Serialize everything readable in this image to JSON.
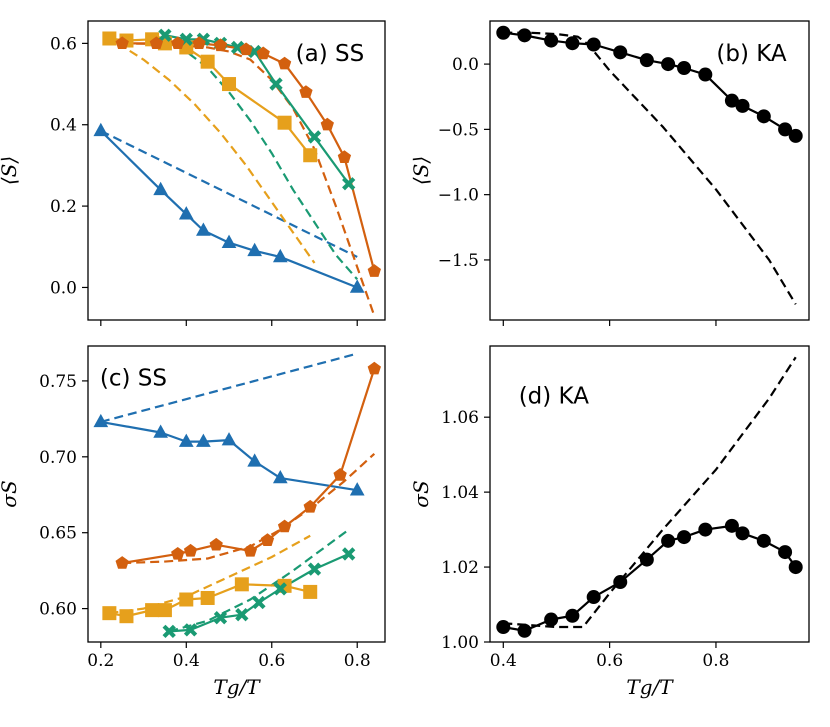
{
  "colors": {
    "blue": "#1f6fb0",
    "orange": "#e6a01c",
    "green": "#1a9a73",
    "red": "#d3600f",
    "black": "#000000"
  },
  "chart_data": [
    {
      "id": "a",
      "type": "line",
      "panel_label": "(a) SS",
      "ylabel": "⟨S⟩",
      "xlabel": "",
      "xlim": [
        0.17,
        0.865
      ],
      "ylim": [
        -0.08,
        0.655
      ],
      "xticks": [
        0.2,
        0.4,
        0.6,
        0.8
      ],
      "xtick_labels": [
        "",
        "",
        "",
        ""
      ],
      "yticks": [
        0.0,
        0.2,
        0.4,
        0.6
      ],
      "ytick_labels": [
        "0.0",
        "0.2",
        "0.4",
        "0.6"
      ],
      "series": [
        {
          "name": "blue-sim",
          "color": "blue",
          "marker": "triangle",
          "x": [
            0.2,
            0.34,
            0.4,
            0.44,
            0.5,
            0.56,
            0.62,
            0.8
          ],
          "y": [
            0.385,
            0.24,
            0.18,
            0.14,
            0.11,
            0.09,
            0.075,
            0.0
          ]
        },
        {
          "name": "blue-theory",
          "color": "blue",
          "dashed": true,
          "x": [
            0.2,
            0.8
          ],
          "y": [
            0.385,
            0.075
          ]
        },
        {
          "name": "orange-sim",
          "color": "orange",
          "marker": "square",
          "x": [
            0.22,
            0.26,
            0.32,
            0.35,
            0.4,
            0.45,
            0.5,
            0.63,
            0.69
          ],
          "y": [
            0.612,
            0.607,
            0.61,
            0.6,
            0.59,
            0.555,
            0.5,
            0.405,
            0.325
          ]
        },
        {
          "name": "orange-theory",
          "color": "orange",
          "dashed": true,
          "x": [
            0.24,
            0.3,
            0.36,
            0.42,
            0.48,
            0.54,
            0.6,
            0.66,
            0.7
          ],
          "y": [
            0.6,
            0.56,
            0.51,
            0.45,
            0.38,
            0.3,
            0.21,
            0.12,
            0.06
          ]
        },
        {
          "name": "green-sim",
          "color": "green",
          "marker": "cross",
          "x": [
            0.35,
            0.4,
            0.44,
            0.48,
            0.52,
            0.56,
            0.61,
            0.7,
            0.78
          ],
          "y": [
            0.62,
            0.61,
            0.61,
            0.6,
            0.59,
            0.58,
            0.5,
            0.37,
            0.255
          ]
        },
        {
          "name": "green-theory",
          "color": "green",
          "dashed": true,
          "x": [
            0.35,
            0.4,
            0.45,
            0.5,
            0.55,
            0.6,
            0.65,
            0.7,
            0.75,
            0.8
          ],
          "y": [
            0.61,
            0.58,
            0.54,
            0.48,
            0.41,
            0.33,
            0.24,
            0.16,
            0.08,
            0.02
          ]
        },
        {
          "name": "red-sim",
          "color": "red",
          "marker": "pentagon",
          "x": [
            0.25,
            0.33,
            0.38,
            0.43,
            0.48,
            0.54,
            0.58,
            0.63,
            0.68,
            0.73,
            0.77,
            0.84
          ],
          "y": [
            0.6,
            0.6,
            0.6,
            0.6,
            0.595,
            0.585,
            0.575,
            0.55,
            0.48,
            0.4,
            0.32,
            0.04
          ]
        },
        {
          "name": "red-theory",
          "color": "red",
          "dashed": true,
          "x": [
            0.25,
            0.35,
            0.45,
            0.5,
            0.55,
            0.6,
            0.65,
            0.7,
            0.75,
            0.8,
            0.84
          ],
          "y": [
            0.6,
            0.598,
            0.59,
            0.58,
            0.56,
            0.51,
            0.44,
            0.34,
            0.2,
            0.05,
            -0.07
          ]
        }
      ]
    },
    {
      "id": "b",
      "type": "line",
      "panel_label": "(b) KA",
      "ylabel": "⟨S⟩",
      "xlabel": "",
      "xlim": [
        0.375,
        0.975
      ],
      "ylim": [
        -1.96,
        0.33
      ],
      "xticks": [
        0.4,
        0.6,
        0.8
      ],
      "xtick_labels": [
        "",
        "",
        ""
      ],
      "yticks": [
        0.0,
        -0.5,
        -1.0,
        -1.5
      ],
      "ytick_labels": [
        "0.0",
        "−0.5",
        "−1.0",
        "−1.5"
      ],
      "series": [
        {
          "name": "KA-sim",
          "color": "black",
          "marker": "circle",
          "x": [
            0.4,
            0.44,
            0.49,
            0.53,
            0.57,
            0.62,
            0.67,
            0.71,
            0.74,
            0.78,
            0.83,
            0.85,
            0.89,
            0.93,
            0.95
          ],
          "y": [
            0.24,
            0.22,
            0.18,
            0.16,
            0.15,
            0.09,
            0.03,
            0.0,
            -0.03,
            -0.08,
            -0.28,
            -0.32,
            -0.4,
            -0.5,
            -0.55
          ]
        },
        {
          "name": "KA-theory",
          "color": "black",
          "dashed": true,
          "x": [
            0.4,
            0.45,
            0.5,
            0.54,
            0.56,
            0.6,
            0.7,
            0.8,
            0.9,
            0.95
          ],
          "y": [
            0.24,
            0.24,
            0.23,
            0.21,
            0.15,
            -0.05,
            -0.48,
            -0.96,
            -1.5,
            -1.84
          ]
        }
      ]
    },
    {
      "id": "c",
      "type": "line",
      "panel_label": "(c) SS",
      "ylabel": "σS",
      "xlabel": "Tg/T",
      "xlim": [
        0.17,
        0.865
      ],
      "ylim": [
        0.578,
        0.773
      ],
      "xticks": [
        0.2,
        0.4,
        0.6,
        0.8
      ],
      "xtick_labels": [
        "0.2",
        "0.4",
        "0.6",
        "0.8"
      ],
      "yticks": [
        0.6,
        0.65,
        0.7,
        0.75
      ],
      "ytick_labels": [
        "0.60",
        "0.65",
        "0.70",
        "0.75"
      ],
      "series": [
        {
          "name": "blue-sim",
          "color": "blue",
          "marker": "triangle",
          "x": [
            0.2,
            0.34,
            0.4,
            0.44,
            0.5,
            0.56,
            0.62,
            0.8
          ],
          "y": [
            0.723,
            0.716,
            0.71,
            0.71,
            0.711,
            0.697,
            0.686,
            0.678
          ]
        },
        {
          "name": "blue-theory",
          "color": "blue",
          "dashed": true,
          "x": [
            0.2,
            0.8
          ],
          "y": [
            0.723,
            0.768
          ]
        },
        {
          "name": "orange-sim",
          "color": "orange",
          "marker": "square",
          "x": [
            0.22,
            0.26,
            0.32,
            0.35,
            0.4,
            0.45,
            0.53,
            0.63,
            0.69
          ],
          "y": [
            0.597,
            0.595,
            0.599,
            0.599,
            0.606,
            0.607,
            0.616,
            0.615,
            0.611
          ]
        },
        {
          "name": "orange-theory",
          "color": "orange",
          "dashed": true,
          "x": [
            0.22,
            0.3,
            0.4,
            0.5,
            0.6,
            0.69
          ],
          "y": [
            0.597,
            0.6,
            0.608,
            0.621,
            0.634,
            0.648
          ]
        },
        {
          "name": "green-sim",
          "color": "green",
          "marker": "cross",
          "x": [
            0.36,
            0.41,
            0.48,
            0.53,
            0.57,
            0.62,
            0.7,
            0.78
          ],
          "y": [
            0.585,
            0.586,
            0.594,
            0.596,
            0.604,
            0.613,
            0.626,
            0.636
          ]
        },
        {
          "name": "green-theory",
          "color": "green",
          "dashed": true,
          "x": [
            0.36,
            0.45,
            0.55,
            0.65,
            0.78
          ],
          "y": [
            0.585,
            0.592,
            0.606,
            0.625,
            0.652
          ]
        },
        {
          "name": "red-sim",
          "color": "red",
          "marker": "pentagon",
          "x": [
            0.25,
            0.38,
            0.41,
            0.47,
            0.55,
            0.59,
            0.63,
            0.69,
            0.76,
            0.84
          ],
          "y": [
            0.63,
            0.636,
            0.638,
            0.642,
            0.638,
            0.645,
            0.654,
            0.667,
            0.688,
            0.758
          ]
        },
        {
          "name": "red-theory",
          "color": "red",
          "dashed": true,
          "x": [
            0.25,
            0.35,
            0.45,
            0.55,
            0.62,
            0.7,
            0.77,
            0.84
          ],
          "y": [
            0.63,
            0.631,
            0.633,
            0.641,
            0.652,
            0.668,
            0.684,
            0.702
          ]
        }
      ]
    },
    {
      "id": "d",
      "type": "line",
      "panel_label": "(d) KA",
      "ylabel": "σS",
      "xlabel": "Tg/T",
      "xlim": [
        0.375,
        0.975
      ],
      "ylim": [
        1.0,
        1.079
      ],
      "xticks": [
        0.4,
        0.6,
        0.8
      ],
      "xtick_labels": [
        "0.4",
        "0.6",
        "0.8"
      ],
      "yticks": [
        1.0,
        1.02,
        1.04,
        1.06
      ],
      "ytick_labels": [
        "1.00",
        "1.02",
        "1.04",
        "1.06"
      ],
      "series": [
        {
          "name": "KA-sim",
          "color": "black",
          "marker": "circle",
          "x": [
            0.4,
            0.44,
            0.49,
            0.53,
            0.57,
            0.62,
            0.67,
            0.71,
            0.74,
            0.78,
            0.83,
            0.85,
            0.89,
            0.93,
            0.95
          ],
          "y": [
            1.004,
            1.003,
            1.006,
            1.007,
            1.012,
            1.016,
            1.022,
            1.027,
            1.028,
            1.03,
            1.031,
            1.029,
            1.027,
            1.024,
            1.02
          ]
        },
        {
          "name": "KA-theory",
          "color": "black",
          "dashed": true,
          "x": [
            0.4,
            0.5,
            0.55,
            0.6,
            0.7,
            0.8,
            0.9,
            0.95
          ],
          "y": [
            1.005,
            1.004,
            1.004,
            1.013,
            1.03,
            1.046,
            1.065,
            1.076
          ]
        }
      ]
    }
  ]
}
